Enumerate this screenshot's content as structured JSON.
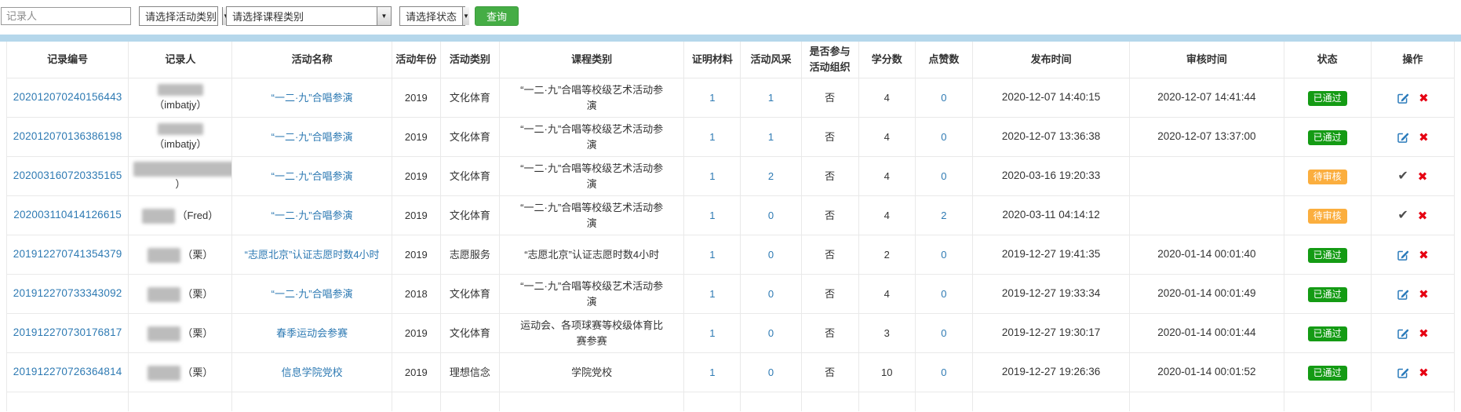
{
  "filters": {
    "keyword_placeholder": "记录人",
    "activity_select_label": "请选择活动类别",
    "course_select_label": "请选择课程类别",
    "status_select_label": "请选择状态",
    "search_button_label": "查询"
  },
  "icons": {
    "dropdown": "▼",
    "approve": "✔",
    "delete": "✖",
    "edit": "edit-pencil-square-icon"
  },
  "colors": {
    "link_blue": "#2e7ab3",
    "search_green": "#45ad45",
    "passed_green": "#149b14",
    "pending_orange": "#fbae3e",
    "delete_red": "#e60012",
    "top_bar_blue": "#b5d7eb"
  },
  "table": {
    "headers": [
      "记录编号",
      "记录人",
      "活动名称",
      "活动年份",
      "活动类别",
      "课程类别",
      "证明材料",
      "活动风采",
      "是否参与活动组织",
      "学分数",
      "点赞数",
      "发布时间",
      "审核时间",
      "状态",
      "操作"
    ],
    "rows": [
      {
        "id": "202012070240156443",
        "recorder_mask": "block-top",
        "recorder_visible": "（imbatjy）",
        "activity": "“一二·九”合唱参演",
        "year": "2019",
        "category": "文化体育",
        "course": "“一二·九”合唱等校级艺术活动参演",
        "proof": "1",
        "photos": "1",
        "organized": "否",
        "credits": "4",
        "likes": "0",
        "publish_time": "2020-12-07 14:40:15",
        "review_time": "2020-12-07 14:41:44",
        "status": "已通过",
        "status_type": "passed",
        "ops_type": "edit"
      },
      {
        "id": "202012070136386198",
        "recorder_mask": "block-top",
        "recorder_visible": "（imbatjy）",
        "activity": "“一二·九”合唱参演",
        "year": "2019",
        "category": "文化体育",
        "course": "“一二·九”合唱等校级艺术活动参演",
        "proof": "1",
        "photos": "1",
        "organized": "否",
        "credits": "4",
        "likes": "0",
        "publish_time": "2020-12-07 13:36:38",
        "review_time": "2020-12-07 13:37:00",
        "status": "已通过",
        "status_type": "passed",
        "ops_type": "edit"
      },
      {
        "id": "202003160720335165",
        "recorder_mask": "wide",
        "recorder_visible": "）",
        "activity": "“一二·九”合唱参演",
        "year": "2019",
        "category": "文化体育",
        "course": "“一二·九”合唱等校级艺术活动参演",
        "proof": "1",
        "photos": "2",
        "organized": "否",
        "credits": "4",
        "likes": "0",
        "publish_time": "2020-03-16 19:20:33",
        "review_time": "",
        "status": "待审核",
        "status_type": "pending",
        "ops_type": "approve"
      },
      {
        "id": "202003110414126615",
        "recorder_mask": "small",
        "recorder_visible": "（Fred）",
        "activity": "“一二·九”合唱参演",
        "year": "2019",
        "category": "文化体育",
        "course": "“一二·九”合唱等校级艺术活动参演",
        "proof": "1",
        "photos": "0",
        "organized": "否",
        "credits": "4",
        "likes": "2",
        "publish_time": "2020-03-11 04:14:12",
        "review_time": "",
        "status": "待审核",
        "status_type": "pending",
        "ops_type": "approve"
      },
      {
        "id": "201912270741354379",
        "recorder_mask": "small",
        "recorder_visible": "（栗）",
        "activity": "“志愿北京”认证志愿时数4小时",
        "year": "2019",
        "category": "志愿服务",
        "course": "“志愿北京”认证志愿时数4小时",
        "proof": "1",
        "photos": "0",
        "organized": "否",
        "credits": "2",
        "likes": "0",
        "publish_time": "2019-12-27 19:41:35",
        "review_time": "2020-01-14 00:01:40",
        "status": "已通过",
        "status_type": "passed",
        "ops_type": "edit"
      },
      {
        "id": "201912270733343092",
        "recorder_mask": "small",
        "recorder_visible": "（栗）",
        "activity": "“一二·九”合唱参演",
        "year": "2018",
        "category": "文化体育",
        "course": "“一二·九”合唱等校级艺术活动参演",
        "proof": "1",
        "photos": "0",
        "organized": "否",
        "credits": "4",
        "likes": "0",
        "publish_time": "2019-12-27 19:33:34",
        "review_time": "2020-01-14 00:01:49",
        "status": "已通过",
        "status_type": "passed",
        "ops_type": "edit"
      },
      {
        "id": "201912270730176817",
        "recorder_mask": "small",
        "recorder_visible": "（栗）",
        "activity": "春季运动会参赛",
        "year": "2019",
        "category": "文化体育",
        "course": "运动会、各项球赛等校级体育比赛参赛",
        "proof": "1",
        "photos": "0",
        "organized": "否",
        "credits": "3",
        "likes": "0",
        "publish_time": "2019-12-27 19:30:17",
        "review_time": "2020-01-14 00:01:44",
        "status": "已通过",
        "status_type": "passed",
        "ops_type": "edit"
      },
      {
        "id": "201912270726364814",
        "recorder_mask": "small",
        "recorder_visible": "（栗）",
        "activity": "信息学院党校",
        "year": "2019",
        "category": "理想信念",
        "course": "学院党校",
        "proof": "1",
        "photos": "0",
        "organized": "否",
        "credits": "10",
        "likes": "0",
        "publish_time": "2019-12-27 19:26:36",
        "review_time": "2020-01-14 00:01:52",
        "status": "已通过",
        "status_type": "passed",
        "ops_type": "edit"
      }
    ],
    "has_partial_row": true
  }
}
